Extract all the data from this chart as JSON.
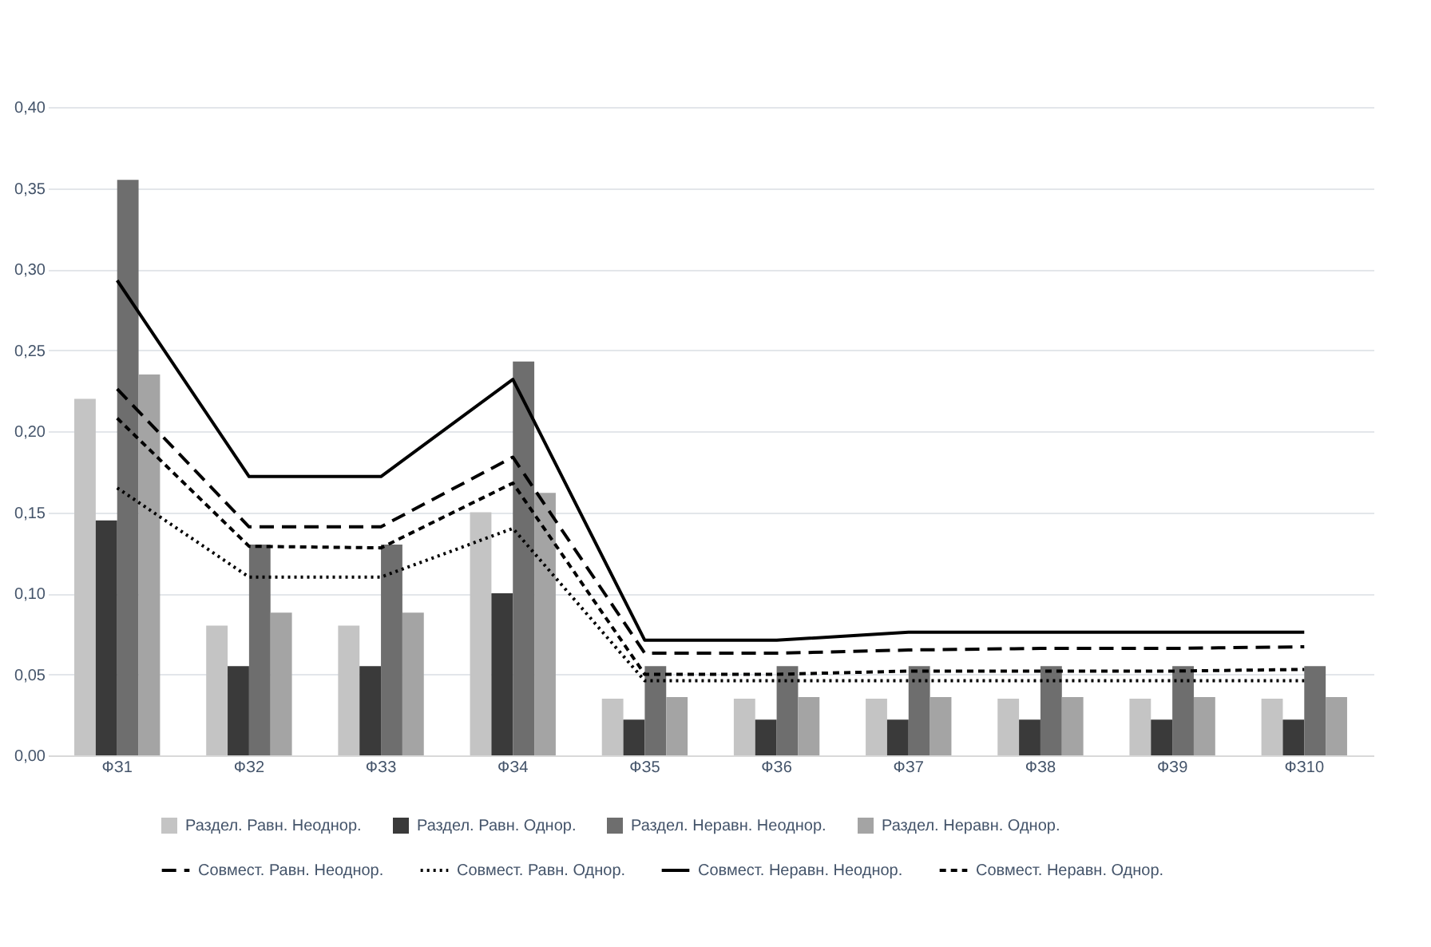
{
  "chart_data": {
    "type": "bar",
    "categories": [
      "ФЗ1",
      "ФЗ2",
      "ФЗ3",
      "ФЗ4",
      "ФЗ5",
      "ФЗ6",
      "ФЗ7",
      "ФЗ8",
      "ФЗ9",
      "ФЗ10"
    ],
    "series": [
      {
        "name": "Раздел. Равн. Неоднор.",
        "color": "#c4c4c4",
        "values": [
          0.22,
          0.08,
          0.08,
          0.15,
          0.035,
          0.035,
          0.035,
          0.035,
          0.035,
          0.035
        ]
      },
      {
        "name": "Раздел. Равн. Однор.",
        "color": "#3a3a3a",
        "values": [
          0.145,
          0.055,
          0.055,
          0.1,
          0.022,
          0.022,
          0.022,
          0.022,
          0.022,
          0.022
        ]
      },
      {
        "name": "Раздел. Неравн. Неоднор.",
        "color": "#6e6e6e",
        "values": [
          0.355,
          0.13,
          0.13,
          0.243,
          0.055,
          0.055,
          0.055,
          0.055,
          0.055,
          0.055
        ]
      },
      {
        "name": "Раздел. Неравн. Однор.",
        "color": "#a4a4a4",
        "values": [
          0.235,
          0.088,
          0.088,
          0.162,
          0.036,
          0.036,
          0.036,
          0.036,
          0.036,
          0.036
        ]
      },
      {
        "name": "Совмест. Равн. Неоднор.",
        "type": "line",
        "line_style": "dashed",
        "color": "#000000",
        "values": [
          0.226,
          0.141,
          0.141,
          0.184,
          0.063,
          0.063,
          0.065,
          0.066,
          0.066,
          0.067
        ]
      },
      {
        "name": "Совмест. Равн. Однор.",
        "type": "line",
        "line_style": "dotted",
        "color": "#000000",
        "values": [
          0.165,
          0.11,
          0.11,
          0.14,
          0.046,
          0.046,
          0.046,
          0.046,
          0.046,
          0.046
        ]
      },
      {
        "name": "Совмест. Неравн. Неоднор.",
        "type": "line",
        "line_style": "solid",
        "color": "#000000",
        "values": [
          0.293,
          0.172,
          0.172,
          0.232,
          0.071,
          0.071,
          0.076,
          0.076,
          0.076,
          0.076
        ]
      },
      {
        "name": "Совмест. Неравн. Однор.",
        "type": "line",
        "line_style": "dashed",
        "color": "#000000",
        "values": [
          0.208,
          0.129,
          0.128,
          0.168,
          0.05,
          0.05,
          0.052,
          0.052,
          0.052,
          0.053
        ]
      }
    ],
    "ylim": [
      0,
      0.4
    ],
    "yticks": [
      {
        "value": 0,
        "label": "0,00"
      },
      {
        "value": 0.05,
        "label": "0,05"
      },
      {
        "value": 0.1,
        "label": "0,10"
      },
      {
        "value": 0.15,
        "label": "0,15"
      },
      {
        "value": 0.2,
        "label": "0,20"
      },
      {
        "value": 0.25,
        "label": "0,25"
      },
      {
        "value": 0.3,
        "label": "0,30"
      },
      {
        "value": 0.35,
        "label": "0,35"
      },
      {
        "value": 0.4,
        "label": "0,40"
      }
    ],
    "grid": "y",
    "legend": "bottom",
    "marker": "none"
  }
}
